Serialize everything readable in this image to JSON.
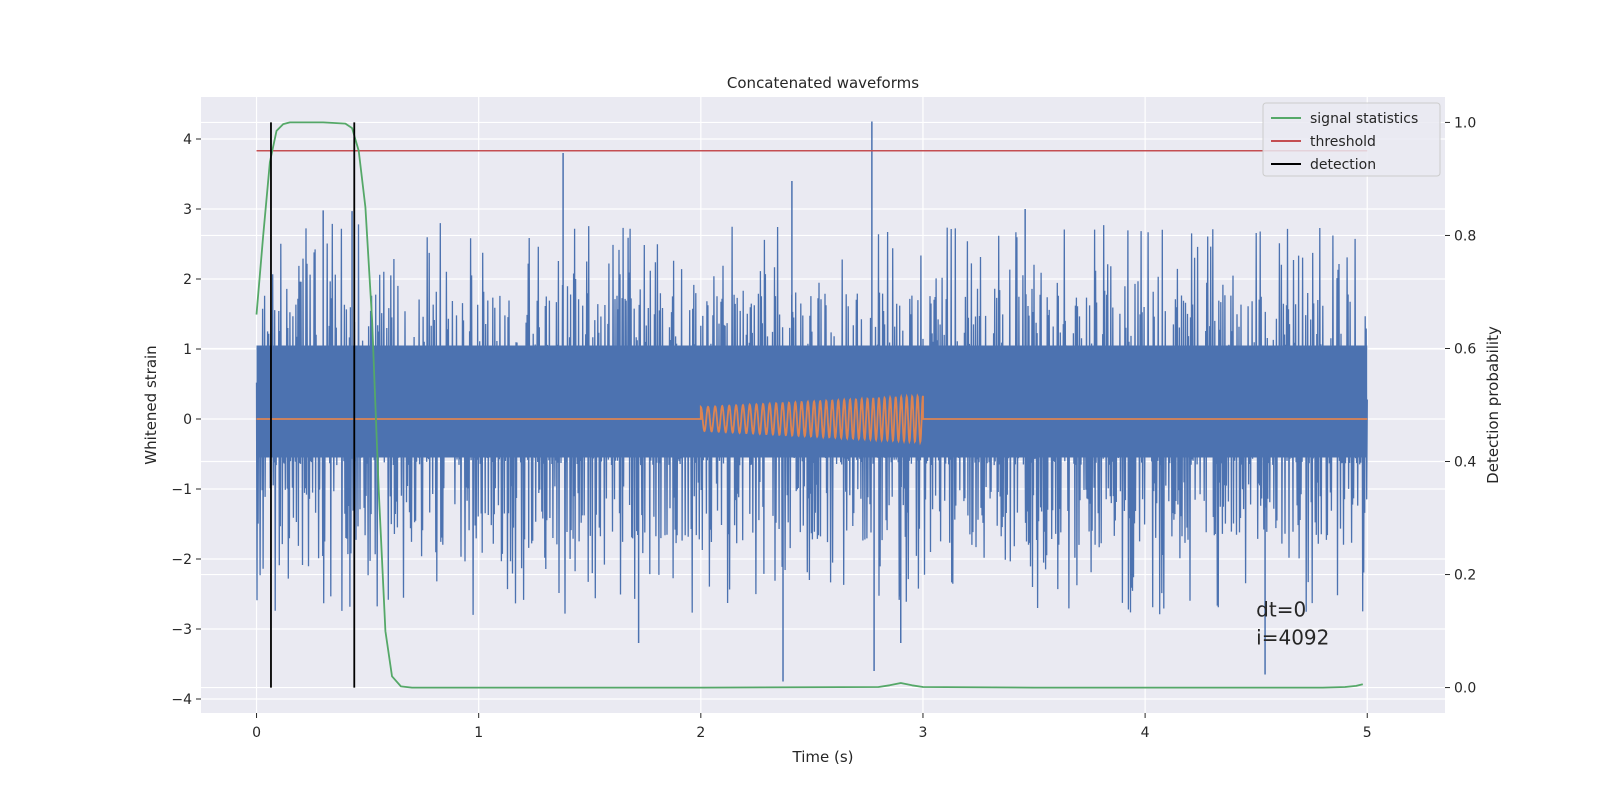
{
  "chart_data": {
    "type": "line",
    "title": "Concatenated waveforms",
    "xlabel": "Time (s)",
    "ylabel": "Whitened strain",
    "ylabel_right": "Detection probability",
    "xlim": [
      -0.25,
      5.35
    ],
    "ylim": [
      -4.2,
      4.6
    ],
    "ylim_right": [
      -0.045,
      1.045
    ],
    "x_ticks": [
      0,
      1,
      2,
      3,
      4,
      5
    ],
    "y_ticks": [
      -4,
      -3,
      -2,
      -1,
      0,
      1,
      2,
      3,
      4
    ],
    "y_ticks_right": [
      0.0,
      0.2,
      0.4,
      0.6,
      0.8,
      1.0
    ],
    "x_tick_labels": [
      "0",
      "1",
      "2",
      "3",
      "4",
      "5"
    ],
    "y_tick_labels": [
      "−4",
      "−3",
      "−2",
      "−1",
      "0",
      "1",
      "2",
      "3",
      "4"
    ],
    "y_tick_labels_right": [
      "0.0",
      "0.2",
      "0.4",
      "0.6",
      "0.8",
      "1.0"
    ],
    "grid": true,
    "legend_position": "upper right",
    "colors": {
      "strain": "#4c72b0",
      "injected_signal": "#dd8452",
      "signal_statistics": "#55a868",
      "threshold": "#c44e52",
      "detection": "#000000",
      "plot_bg": "#eaeaf2",
      "grid": "#ffffff"
    },
    "legend": [
      {
        "key": "signal_statistics",
        "label": "signal statistics"
      },
      {
        "key": "threshold",
        "label": "threshold"
      },
      {
        "key": "detection",
        "label": "detection"
      }
    ],
    "series": [
      {
        "name": "signal statistics",
        "axis": "right",
        "x": [
          0.0,
          0.03,
          0.06,
          0.09,
          0.12,
          0.15,
          0.2,
          0.3,
          0.4,
          0.43,
          0.46,
          0.49,
          0.52,
          0.55,
          0.58,
          0.61,
          0.65,
          0.7,
          1.0,
          2.0,
          2.8,
          2.85,
          2.9,
          2.95,
          3.0,
          3.5,
          4.0,
          4.5,
          4.8,
          4.9,
          4.95,
          4.98
        ],
        "y": [
          0.66,
          0.8,
          0.93,
          0.985,
          0.997,
          1.0,
          1.0,
          1.0,
          0.998,
          0.99,
          0.95,
          0.85,
          0.65,
          0.35,
          0.1,
          0.02,
          0.002,
          0.0,
          0.0,
          0.0,
          0.001,
          0.004,
          0.008,
          0.004,
          0.001,
          0.0,
          0.0,
          0.0,
          0.0,
          0.001,
          0.003,
          0.006
        ]
      },
      {
        "name": "threshold",
        "axis": "right",
        "x": [
          0.0,
          5.0
        ],
        "y": [
          0.95,
          0.95
        ]
      },
      {
        "name": "detection",
        "axis": "right",
        "x_positions": [
          0.065,
          0.44
        ],
        "y_range": [
          0.0,
          1.0
        ]
      },
      {
        "name": "",
        "axis": "left",
        "description_free": true,
        "x_range": [
          0.0,
          5.0
        ],
        "core_amplitude": 0.55,
        "typical_peak": 2.5,
        "notable_peaks": [
          {
            "x": 1.38,
            "y": 3.8
          },
          {
            "x": 2.77,
            "y": 4.25
          },
          {
            "x": 2.41,
            "y": 3.4
          },
          {
            "x": 2.37,
            "y": -3.75
          },
          {
            "x": 2.78,
            "y": -3.6
          },
          {
            "x": 4.54,
            "y": -3.65
          },
          {
            "x": 1.72,
            "y": -3.2
          },
          {
            "x": 0.43,
            "y": 2.97
          },
          {
            "x": 0.3,
            "y": 2.98
          },
          {
            "x": 3.46,
            "y": 3.0
          },
          {
            "x": 2.9,
            "y": -3.2
          }
        ]
      },
      {
        "name": "",
        "axis": "left",
        "x_range": [
          0.0,
          5.0
        ],
        "chirp_start": 2.0,
        "chirp_end": 3.0,
        "chirp_amp_start": 0.17,
        "chirp_amp_end": 0.33,
        "chirp_cycles": 36
      }
    ],
    "annotations": [
      {
        "text": "dt=0",
        "x": 4.5,
        "y": -2.82
      },
      {
        "text": "i=4092",
        "x": 4.5,
        "y": -3.22
      }
    ]
  }
}
